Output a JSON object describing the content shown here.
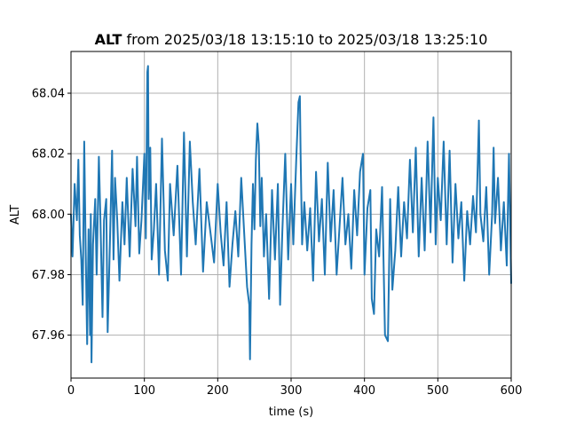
{
  "chart_data": {
    "type": "line",
    "title": {
      "bold": "ALT",
      "rest": " from 2025/03/18 13:15:10 to 2025/03/18 13:25:10"
    },
    "xlabel": "time (s)",
    "ylabel": "ALT",
    "xlim": [
      0,
      600
    ],
    "ylim": [
      67.9458,
      68.0538
    ],
    "x_ticks": [
      0,
      100,
      200,
      300,
      400,
      500,
      600
    ],
    "x_tick_labels": [
      "0",
      "100",
      "200",
      "300",
      "400",
      "500",
      "600"
    ],
    "y_ticks": [
      67.96,
      67.98,
      68.0,
      68.02,
      68.04
    ],
    "y_tick_labels": [
      "67.96",
      "67.98",
      "68.00",
      "68.02",
      "68.04"
    ],
    "grid": true,
    "series": [
      {
        "color": "#1f77b4",
        "points": [
          [
            0,
            68.0
          ],
          [
            2,
            67.986
          ],
          [
            5,
            68.01
          ],
          [
            8,
            67.998
          ],
          [
            10,
            68.018
          ],
          [
            12,
            67.993
          ],
          [
            14,
            67.985
          ],
          [
            16,
            67.97
          ],
          [
            17,
            68.0
          ],
          [
            18,
            68.024
          ],
          [
            20,
            67.989
          ],
          [
            22,
            67.957
          ],
          [
            24,
            67.995
          ],
          [
            26,
            67.96
          ],
          [
            27,
            68.0
          ],
          [
            28,
            67.951
          ],
          [
            30,
            67.99
          ],
          [
            33,
            68.005
          ],
          [
            35,
            67.98
          ],
          [
            38,
            68.019
          ],
          [
            40,
            67.999
          ],
          [
            43,
            67.966
          ],
          [
            45,
            67.998
          ],
          [
            48,
            68.005
          ],
          [
            50,
            67.961
          ],
          [
            53,
            67.99
          ],
          [
            56,
            68.021
          ],
          [
            58,
            67.985
          ],
          [
            60,
            68.012
          ],
          [
            63,
            67.998
          ],
          [
            66,
            67.978
          ],
          [
            70,
            68.004
          ],
          [
            73,
            67.99
          ],
          [
            76,
            68.012
          ],
          [
            80,
            67.986
          ],
          [
            84,
            68.015
          ],
          [
            88,
            67.996
          ],
          [
            90,
            68.019
          ],
          [
            93,
            67.987
          ],
          [
            96,
            67.998
          ],
          [
            100,
            68.02
          ],
          [
            102,
            67.992
          ],
          [
            104,
            68.047
          ],
          [
            105,
            68.049
          ],
          [
            106,
            68.005
          ],
          [
            108,
            68.022
          ],
          [
            110,
            67.985
          ],
          [
            113,
            67.995
          ],
          [
            116,
            68.01
          ],
          [
            120,
            67.98
          ],
          [
            124,
            68.025
          ],
          [
            128,
            67.988
          ],
          [
            132,
            67.978
          ],
          [
            135,
            68.01
          ],
          [
            140,
            67.993
          ],
          [
            145,
            68.016
          ],
          [
            150,
            67.98
          ],
          [
            154,
            68.027
          ],
          [
            158,
            67.986
          ],
          [
            162,
            68.024
          ],
          [
            166,
            68.004
          ],
          [
            170,
            67.99
          ],
          [
            175,
            68.015
          ],
          [
            180,
            67.981
          ],
          [
            185,
            68.004
          ],
          [
            190,
            67.994
          ],
          [
            195,
            67.984
          ],
          [
            200,
            68.01
          ],
          [
            204,
            67.994
          ],
          [
            208,
            67.983
          ],
          [
            212,
            68.004
          ],
          [
            216,
            67.976
          ],
          [
            220,
            67.99
          ],
          [
            224,
            68.001
          ],
          [
            228,
            67.986
          ],
          [
            232,
            68.012
          ],
          [
            236,
            67.994
          ],
          [
            240,
            67.976
          ],
          [
            243,
            67.97
          ],
          [
            244,
            67.952
          ],
          [
            246,
            67.99
          ],
          [
            248,
            68.01
          ],
          [
            250,
            67.995
          ],
          [
            252,
            68.018
          ],
          [
            254,
            68.03
          ],
          [
            256,
            68.023
          ],
          [
            258,
            67.996
          ],
          [
            260,
            68.012
          ],
          [
            263,
            67.986
          ],
          [
            266,
            68.0
          ],
          [
            270,
            67.972
          ],
          [
            274,
            68.008
          ],
          [
            278,
            67.985
          ],
          [
            282,
            68.01
          ],
          [
            285,
            67.97
          ],
          [
            288,
            67.994
          ],
          [
            292,
            68.02
          ],
          [
            296,
            67.985
          ],
          [
            300,
            68.01
          ],
          [
            303,
            67.99
          ],
          [
            305,
            68.004
          ],
          [
            307,
            68.018
          ],
          [
            310,
            68.037
          ],
          [
            312,
            68.039
          ],
          [
            313,
            68.02
          ],
          [
            315,
            67.99
          ],
          [
            318,
            68.004
          ],
          [
            322,
            67.988
          ],
          [
            326,
            68.002
          ],
          [
            330,
            67.978
          ],
          [
            334,
            68.014
          ],
          [
            338,
            67.991
          ],
          [
            342,
            68.005
          ],
          [
            346,
            67.98
          ],
          [
            350,
            68.017
          ],
          [
            354,
            67.991
          ],
          [
            358,
            68.008
          ],
          [
            362,
            67.98
          ],
          [
            366,
            67.996
          ],
          [
            370,
            68.012
          ],
          [
            374,
            67.99
          ],
          [
            378,
            68.0
          ],
          [
            382,
            67.982
          ],
          [
            386,
            68.008
          ],
          [
            390,
            67.993
          ],
          [
            394,
            68.014
          ],
          [
            398,
            68.02
          ],
          [
            400,
            67.98
          ],
          [
            404,
            68.002
          ],
          [
            408,
            68.008
          ],
          [
            410,
            67.972
          ],
          [
            413,
            67.967
          ],
          [
            416,
            67.995
          ],
          [
            420,
            67.986
          ],
          [
            424,
            68.009
          ],
          [
            428,
            67.96
          ],
          [
            432,
            67.958
          ],
          [
            435,
            68.005
          ],
          [
            438,
            67.975
          ],
          [
            442,
            67.988
          ],
          [
            446,
            68.009
          ],
          [
            450,
            67.986
          ],
          [
            454,
            68.004
          ],
          [
            458,
            67.992
          ],
          [
            462,
            68.018
          ],
          [
            466,
            67.994
          ],
          [
            470,
            68.022
          ],
          [
            474,
            67.986
          ],
          [
            478,
            68.012
          ],
          [
            482,
            67.988
          ],
          [
            486,
            68.024
          ],
          [
            490,
            67.994
          ],
          [
            494,
            68.032
          ],
          [
            497,
            67.99
          ],
          [
            500,
            68.012
          ],
          [
            504,
            67.998
          ],
          [
            508,
            68.024
          ],
          [
            512,
            67.99
          ],
          [
            516,
            68.021
          ],
          [
            520,
            67.984
          ],
          [
            524,
            68.01
          ],
          [
            528,
            67.992
          ],
          [
            532,
            68.004
          ],
          [
            536,
            67.978
          ],
          [
            540,
            68.001
          ],
          [
            544,
            67.99
          ],
          [
            548,
            68.006
          ],
          [
            552,
            67.994
          ],
          [
            556,
            68.031
          ],
          [
            558,
            68.0
          ],
          [
            562,
            67.991
          ],
          [
            566,
            68.009
          ],
          [
            570,
            67.98
          ],
          [
            574,
            68.0
          ],
          [
            576,
            68.022
          ],
          [
            578,
            67.997
          ],
          [
            582,
            68.012
          ],
          [
            586,
            67.988
          ],
          [
            590,
            68.004
          ],
          [
            594,
            67.983
          ],
          [
            597,
            68.02
          ],
          [
            600,
            67.977
          ]
        ]
      }
    ]
  }
}
